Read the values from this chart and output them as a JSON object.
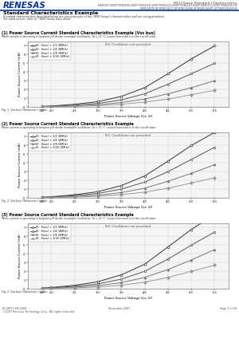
{
  "header_title": "MCU Group Standard Characteristics",
  "header_models1": "M38D20F-XXXFP M38D20G-XXXFP M38D20H-XXXFP M38D22G-XXXFP M38D22H-XXXFP M38D23G-XXXFP M38D23H-HP",
  "header_models2": "M38D24GTP-HP M38D24GCY-HP M38D24GAT-HP M38D24GHPF-HP M38D24GHP-HP",
  "section_title": "Standard Characteristics Example",
  "section_sub1": "Standard characteristics described below are just examples of the 3800 Group's characteristics and are not guaranteed.",
  "section_sub2": "For rated values, refer to \"3800 Group Data sheet\".",
  "chart1_title": "(1) Power Source Current Standard Characteristics Example (Vss bus)",
  "chart1_condition": "When system is operating in frequency(f) divide (example) oscillation, Ta = 25 °C, output transistor is in the cut-off state.",
  "chart1_annotation": "R/C Oscillation not provided",
  "chart1_xlabel": "Power Source Voltage Vcc (V)",
  "chart1_ylabel": "Power Source Current (mA)",
  "chart1_footnote": "Fig. 1. Vss bus (Idd(active)) stable",
  "chart1_xdata": [
    1.8,
    2.0,
    2.5,
    3.0,
    3.5,
    4.0,
    4.5,
    5.0,
    5.5
  ],
  "chart1_yticks": [
    0,
    1.0,
    2.0,
    3.0,
    4.0,
    5.0,
    6.0,
    7.0
  ],
  "chart1_series": [
    {
      "label": "f0 : f(osc) × 1/2 (8MHz)",
      "marker": "o",
      "values": [
        0.05,
        0.1,
        0.3,
        0.6,
        1.2,
        2.2,
        3.8,
        5.5,
        7.0
      ]
    },
    {
      "label": "f0 : f(osc) × 1/4 (4MHz)",
      "marker": "s",
      "values": [
        0.04,
        0.07,
        0.2,
        0.4,
        0.8,
        1.5,
        2.6,
        3.8,
        5.0
      ]
    },
    {
      "label": "f0 : f(osc) × 1/8 (2MHz)",
      "marker": "^",
      "values": [
        0.03,
        0.05,
        0.12,
        0.25,
        0.5,
        0.9,
        1.5,
        2.2,
        3.0
      ]
    },
    {
      "label": "f0 : f(osc) × 1/16 (1MHz)",
      "marker": "D",
      "values": [
        0.02,
        0.03,
        0.07,
        0.15,
        0.3,
        0.55,
        0.9,
        1.4,
        1.9
      ]
    }
  ],
  "chart1_ylim": [
    0,
    7.5
  ],
  "chart1_xlim": [
    1.5,
    5.8
  ],
  "chart2_title": "(2) Power Source Current Standard Characteristics Example",
  "chart2_condition": "When system is operating in frequency(f) divide (example) oscillation, Ta = 25 °C, output transistor is in the cut-off state.",
  "chart2_annotation": "R/C Oscillation not provided",
  "chart2_xlabel": "Power Source Voltage Vcc (V)",
  "chart2_ylabel": "Power Source Current (mA)",
  "chart2_footnote": "Fig. 2. Vss bus (Idd(active)) stable",
  "chart2_xdata": [
    1.8,
    2.0,
    2.5,
    3.0,
    3.5,
    4.0,
    4.5,
    5.0,
    5.5
  ],
  "chart2_yticks": [
    0,
    1.0,
    2.0,
    3.0,
    4.0,
    5.0,
    6.0,
    7.0
  ],
  "chart2_series": [
    {
      "label": "f0 : f(osc) × 1/2 (8MHz)",
      "marker": "o",
      "values": [
        0.06,
        0.12,
        0.35,
        0.7,
        1.4,
        2.5,
        4.2,
        6.0,
        7.5
      ]
    },
    {
      "label": "f0 : f(osc) × 1/4 (4MHz)",
      "marker": "s",
      "values": [
        0.05,
        0.09,
        0.25,
        0.5,
        1.0,
        1.8,
        3.0,
        4.4,
        5.8
      ]
    },
    {
      "label": "f0 : f(osc) × 1/8 (2MHz)",
      "marker": "^",
      "values": [
        0.03,
        0.06,
        0.15,
        0.3,
        0.6,
        1.1,
        1.9,
        2.8,
        3.8
      ]
    },
    {
      "label": "f0 : f(osc) × 1/16 (1MHz)",
      "marker": "D",
      "values": [
        0.02,
        0.04,
        0.09,
        0.18,
        0.36,
        0.65,
        1.1,
        1.7,
        2.3
      ]
    }
  ],
  "chart2_ylim": [
    0,
    7.5
  ],
  "chart2_xlim": [
    1.5,
    5.8
  ],
  "chart3_title": "(3) Power Source Current Standard Characteristics Example",
  "chart3_condition": "When system is operating in frequency(f) divide (example) oscillation, Ta = 25 °C, output transistor is in the cut-off state.",
  "chart3_annotation": "R/C Oscillation not provided",
  "chart3_xlabel": "Power Source Voltage Vcc (V)",
  "chart3_ylabel": "Power Source Current (mA)",
  "chart3_footnote": "Fig. 3. Vss bus (Idd(active)) stable",
  "chart3_xdata": [
    1.8,
    2.0,
    2.5,
    3.0,
    3.5,
    4.0,
    4.5,
    5.0,
    5.5
  ],
  "chart3_yticks": [
    0,
    1.0,
    2.0,
    3.0,
    4.0,
    5.0,
    6.0,
    7.0
  ],
  "chart3_series": [
    {
      "label": "f0 : f(osc) × 1/2 (8MHz)",
      "marker": "o",
      "values": [
        0.07,
        0.14,
        0.4,
        0.8,
        1.6,
        2.8,
        4.8,
        6.8,
        8.5
      ]
    },
    {
      "label": "f0 : f(osc) × 1/4 (4MHz)",
      "marker": "s",
      "values": [
        0.05,
        0.1,
        0.28,
        0.55,
        1.1,
        2.0,
        3.4,
        5.0,
        6.5
      ]
    },
    {
      "label": "f0 : f(osc) × 1/8 (2MHz)",
      "marker": "^",
      "values": [
        0.03,
        0.07,
        0.18,
        0.36,
        0.7,
        1.3,
        2.2,
        3.3,
        4.5
      ]
    },
    {
      "label": "f0 : f(osc) × 1/16 (1MHz)",
      "marker": "D",
      "values": [
        0.02,
        0.04,
        0.1,
        0.2,
        0.4,
        0.75,
        1.3,
        2.0,
        2.7
      ]
    }
  ],
  "chart3_ylim": [
    0,
    7.5
  ],
  "chart3_xlim": [
    1.5,
    5.8
  ],
  "line_colors": [
    "#333333",
    "#555555",
    "#777777",
    "#999999"
  ],
  "footer_doc": "RE-J08Y1-1N-0300",
  "footer_copy": "©2007 Renesas Technology Corp., All rights reserved.",
  "footer_date": "November 2007",
  "footer_page": "Page 1 of 26",
  "bg_color": "#ffffff",
  "header_line_color": "#003399",
  "grid_color": "#cccccc",
  "plot_bg": "#f5f5f5"
}
